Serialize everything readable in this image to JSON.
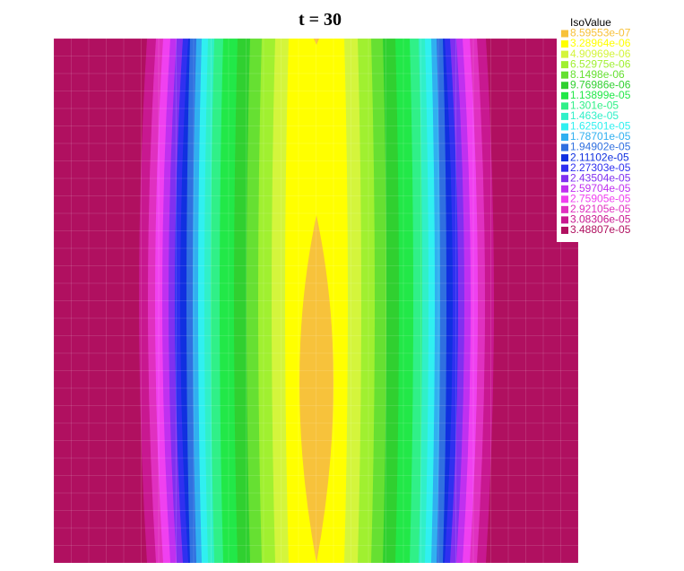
{
  "title": "t = 30",
  "legend": {
    "title": "IsoValue",
    "items": [
      {
        "label": "8.59553e-07",
        "color": "#f7c23b"
      },
      {
        "label": "3.28964e-06",
        "color": "#ffff00"
      },
      {
        "label": "4.90969e-06",
        "color": "#d4f53c"
      },
      {
        "label": "6.52975e-06",
        "color": "#a0f030"
      },
      {
        "label": "8.1498e-06",
        "color": "#66e032"
      },
      {
        "label": "9.76986e-06",
        "color": "#30d030"
      },
      {
        "label": "1.13899e-05",
        "color": "#22e848"
      },
      {
        "label": "1.301e-05",
        "color": "#30f088"
      },
      {
        "label": "1.463e-05",
        "color": "#30f0c8"
      },
      {
        "label": "1.62501e-05",
        "color": "#30f0f0"
      },
      {
        "label": "1.78701e-05",
        "color": "#30b0f0"
      },
      {
        "label": "1.94902e-05",
        "color": "#3070e0"
      },
      {
        "label": "2.11102e-05",
        "color": "#1030e0"
      },
      {
        "label": "2.27303e-05",
        "color": "#3030f0"
      },
      {
        "label": "2.43504e-05",
        "color": "#8030f0"
      },
      {
        "label": "2.59704e-05",
        "color": "#c030f0"
      },
      {
        "label": "2.75905e-05",
        "color": "#f040f0"
      },
      {
        "label": "2.92105e-05",
        "color": "#e030c0"
      },
      {
        "label": "3.08306e-05",
        "color": "#c81890"
      },
      {
        "label": "3.48807e-05",
        "color": "#b01060"
      }
    ]
  }
}
